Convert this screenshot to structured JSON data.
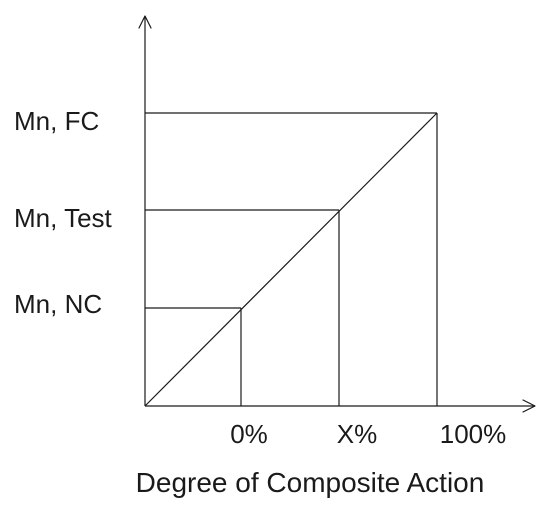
{
  "y_labels": {
    "fc": "Mn, FC",
    "test": "Mn, Test",
    "nc": "Mn, NC"
  },
  "x_labels": {
    "zero": "0%",
    "x": "X%",
    "hundred": "100%"
  },
  "x_axis_title": "Degree of Composite Action"
}
